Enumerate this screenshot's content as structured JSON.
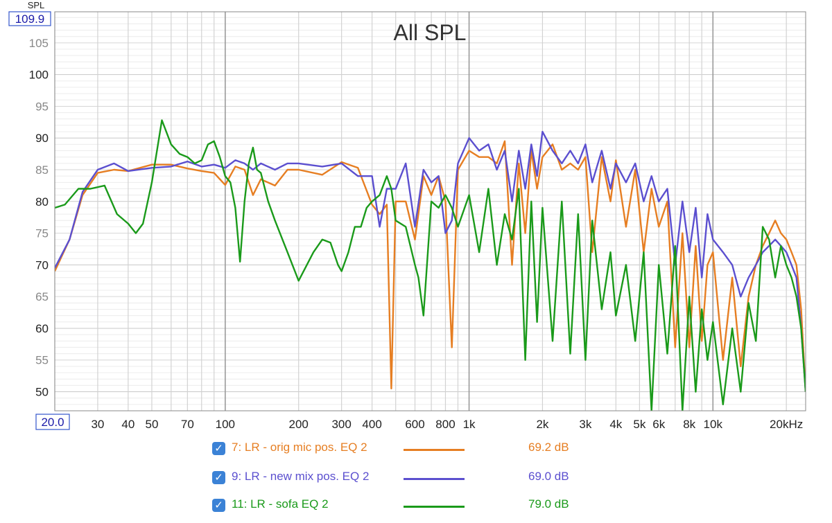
{
  "chart_data": {
    "type": "line",
    "title": "All SPL",
    "ylabel": "SPL",
    "ylim": [
      47,
      109.9
    ],
    "y_top_label": "109.9",
    "yticks": [
      {
        "v": 105,
        "label": "105",
        "major": false
      },
      {
        "v": 100,
        "label": "100",
        "major": true
      },
      {
        "v": 95,
        "label": "95",
        "major": false
      },
      {
        "v": 90,
        "label": "90",
        "major": true
      },
      {
        "v": 85,
        "label": "85",
        "major": false
      },
      {
        "v": 80,
        "label": "80",
        "major": true
      },
      {
        "v": 75,
        "label": "75",
        "major": false
      },
      {
        "v": 70,
        "label": "70",
        "major": true
      },
      {
        "v": 65,
        "label": "65",
        "major": false
      },
      {
        "v": 60,
        "label": "60",
        "major": true
      },
      {
        "v": 55,
        "label": "55",
        "major": false
      },
      {
        "v": 50,
        "label": "50",
        "major": true
      }
    ],
    "xscale": "log",
    "xlim": [
      20,
      24000
    ],
    "x_start_label": "20.0",
    "xticks": [
      {
        "v": 30,
        "label": "30"
      },
      {
        "v": 40,
        "label": "40"
      },
      {
        "v": 50,
        "label": "50"
      },
      {
        "v": 70,
        "label": "70"
      },
      {
        "v": 100,
        "label": "100"
      },
      {
        "v": 200,
        "label": "200"
      },
      {
        "v": 300,
        "label": "300"
      },
      {
        "v": 400,
        "label": "400"
      },
      {
        "v": 600,
        "label": "600"
      },
      {
        "v": 800,
        "label": "800"
      },
      {
        "v": 1000,
        "label": "1k"
      },
      {
        "v": 2000,
        "label": "2k"
      },
      {
        "v": 3000,
        "label": "3k"
      },
      {
        "v": 4000,
        "label": "4k"
      },
      {
        "v": 5000,
        "label": "5k"
      },
      {
        "v": 6000,
        "label": "6k"
      },
      {
        "v": 8000,
        "label": "8k"
      },
      {
        "v": 10000,
        "label": "10k"
      },
      {
        "v": 20000,
        "label": "20kHz"
      }
    ],
    "grid": true,
    "legend_position": "bottom",
    "series": [
      {
        "name": "7: LR - orig mic pos. EQ 2",
        "color": "#e67e22",
        "level": "69.2 dB",
        "points": [
          [
            20,
            69
          ],
          [
            23,
            74
          ],
          [
            26,
            81
          ],
          [
            30,
            84.5
          ],
          [
            35,
            85
          ],
          [
            40,
            84.8
          ],
          [
            50,
            85.8
          ],
          [
            60,
            85.8
          ],
          [
            70,
            85.2
          ],
          [
            80,
            84.8
          ],
          [
            90,
            84.5
          ],
          [
            100,
            82.6
          ],
          [
            110,
            85.5
          ],
          [
            120,
            85
          ],
          [
            130,
            81
          ],
          [
            140,
            83.5
          ],
          [
            160,
            82.5
          ],
          [
            180,
            85
          ],
          [
            200,
            85
          ],
          [
            250,
            84.2
          ],
          [
            300,
            86.2
          ],
          [
            350,
            85.3
          ],
          [
            400,
            79.5
          ],
          [
            430,
            78
          ],
          [
            460,
            79.5
          ],
          [
            480,
            50.5
          ],
          [
            500,
            80
          ],
          [
            550,
            80
          ],
          [
            600,
            74
          ],
          [
            650,
            84
          ],
          [
            700,
            81
          ],
          [
            750,
            84
          ],
          [
            800,
            80
          ],
          [
            850,
            57
          ],
          [
            900,
            85
          ],
          [
            1000,
            88
          ],
          [
            1100,
            87
          ],
          [
            1200,
            87
          ],
          [
            1300,
            86
          ],
          [
            1400,
            89.5
          ],
          [
            1500,
            70
          ],
          [
            1600,
            86
          ],
          [
            1700,
            75
          ],
          [
            1800,
            88
          ],
          [
            1900,
            82
          ],
          [
            2000,
            87
          ],
          [
            2200,
            89
          ],
          [
            2400,
            85
          ],
          [
            2600,
            86
          ],
          [
            2800,
            85
          ],
          [
            3000,
            87
          ],
          [
            3200,
            72
          ],
          [
            3500,
            87
          ],
          [
            3800,
            80
          ],
          [
            4000,
            86.5
          ],
          [
            4400,
            76
          ],
          [
            4800,
            85
          ],
          [
            5200,
            72
          ],
          [
            5600,
            82
          ],
          [
            6000,
            76
          ],
          [
            6500,
            80
          ],
          [
            7000,
            57
          ],
          [
            7500,
            75
          ],
          [
            8000,
            57
          ],
          [
            8500,
            73
          ],
          [
            9000,
            58
          ],
          [
            9500,
            70
          ],
          [
            10000,
            72
          ],
          [
            11000,
            55
          ],
          [
            12000,
            68
          ],
          [
            13000,
            54
          ],
          [
            14000,
            65
          ],
          [
            15000,
            70
          ],
          [
            16000,
            73
          ],
          [
            17000,
            75
          ],
          [
            18000,
            77
          ],
          [
            19000,
            75
          ],
          [
            20000,
            74
          ],
          [
            21000,
            72
          ],
          [
            22000,
            70
          ],
          [
            23000,
            63
          ],
          [
            24000,
            50
          ]
        ]
      },
      {
        "name": "9: LR - new mix pos. EQ 2",
        "color": "#5b4fcf",
        "level": "69.0 dB",
        "points": [
          [
            20,
            69.5
          ],
          [
            23,
            74
          ],
          [
            26,
            81.5
          ],
          [
            30,
            85
          ],
          [
            35,
            86
          ],
          [
            40,
            84.8
          ],
          [
            50,
            85.3
          ],
          [
            60,
            85.5
          ],
          [
            70,
            86.3
          ],
          [
            80,
            85.5
          ],
          [
            90,
            85.8
          ],
          [
            100,
            85.3
          ],
          [
            110,
            86.5
          ],
          [
            120,
            86
          ],
          [
            130,
            85
          ],
          [
            140,
            86
          ],
          [
            160,
            85
          ],
          [
            180,
            86
          ],
          [
            200,
            86
          ],
          [
            250,
            85.5
          ],
          [
            300,
            86
          ],
          [
            350,
            84
          ],
          [
            400,
            84
          ],
          [
            430,
            76
          ],
          [
            460,
            82
          ],
          [
            500,
            82
          ],
          [
            550,
            86
          ],
          [
            600,
            76
          ],
          [
            650,
            85
          ],
          [
            700,
            83
          ],
          [
            750,
            84
          ],
          [
            800,
            75
          ],
          [
            850,
            77
          ],
          [
            900,
            86
          ],
          [
            1000,
            90
          ],
          [
            1100,
            88
          ],
          [
            1200,
            89
          ],
          [
            1300,
            85
          ],
          [
            1400,
            88
          ],
          [
            1500,
            80
          ],
          [
            1600,
            88
          ],
          [
            1700,
            82
          ],
          [
            1800,
            89
          ],
          [
            1900,
            84
          ],
          [
            2000,
            91
          ],
          [
            2200,
            88
          ],
          [
            2400,
            86
          ],
          [
            2600,
            88
          ],
          [
            2800,
            86
          ],
          [
            3000,
            89
          ],
          [
            3200,
            83
          ],
          [
            3500,
            88
          ],
          [
            3800,
            82
          ],
          [
            4000,
            86
          ],
          [
            4400,
            83
          ],
          [
            4800,
            86
          ],
          [
            5200,
            80
          ],
          [
            5600,
            84
          ],
          [
            6000,
            80
          ],
          [
            6500,
            82
          ],
          [
            7000,
            70
          ],
          [
            7500,
            80
          ],
          [
            8000,
            72
          ],
          [
            8500,
            79
          ],
          [
            9000,
            68
          ],
          [
            9500,
            78
          ],
          [
            10000,
            74
          ],
          [
            11000,
            72
          ],
          [
            12000,
            70
          ],
          [
            13000,
            65
          ],
          [
            14000,
            68
          ],
          [
            15000,
            70
          ],
          [
            16000,
            72
          ],
          [
            17000,
            73
          ],
          [
            18000,
            74
          ],
          [
            19000,
            73
          ],
          [
            20000,
            72
          ],
          [
            21000,
            70
          ],
          [
            22000,
            68
          ],
          [
            23000,
            60
          ],
          [
            24000,
            50
          ]
        ]
      },
      {
        "name": "11: LR - sofa EQ 2",
        "color": "#1a9a1a",
        "level": "79.0 dB",
        "points": [
          [
            20,
            79
          ],
          [
            22,
            79.5
          ],
          [
            25,
            82
          ],
          [
            28,
            82
          ],
          [
            32,
            82.5
          ],
          [
            36,
            78
          ],
          [
            40,
            76.5
          ],
          [
            43,
            75
          ],
          [
            46,
            76.5
          ],
          [
            50,
            83
          ],
          [
            55,
            92.8
          ],
          [
            60,
            89
          ],
          [
            65,
            87.5
          ],
          [
            70,
            87
          ],
          [
            75,
            86
          ],
          [
            80,
            86.5
          ],
          [
            85,
            89
          ],
          [
            90,
            89.5
          ],
          [
            95,
            87
          ],
          [
            100,
            84
          ],
          [
            105,
            83
          ],
          [
            110,
            79
          ],
          [
            115,
            70.5
          ],
          [
            120,
            80
          ],
          [
            125,
            86
          ],
          [
            130,
            88.5
          ],
          [
            135,
            85
          ],
          [
            140,
            84.5
          ],
          [
            150,
            80
          ],
          [
            160,
            77
          ],
          [
            180,
            72
          ],
          [
            200,
            67.5
          ],
          [
            230,
            72
          ],
          [
            250,
            74
          ],
          [
            270,
            73.5
          ],
          [
            290,
            70
          ],
          [
            300,
            69
          ],
          [
            320,
            72
          ],
          [
            340,
            76
          ],
          [
            360,
            76
          ],
          [
            380,
            79
          ],
          [
            400,
            80
          ],
          [
            430,
            81
          ],
          [
            460,
            84
          ],
          [
            480,
            82
          ],
          [
            500,
            77
          ],
          [
            550,
            76
          ],
          [
            600,
            70
          ],
          [
            620,
            68
          ],
          [
            650,
            62
          ],
          [
            700,
            80
          ],
          [
            750,
            79
          ],
          [
            800,
            81
          ],
          [
            850,
            79
          ],
          [
            900,
            76
          ],
          [
            1000,
            81
          ],
          [
            1100,
            72
          ],
          [
            1200,
            82
          ],
          [
            1300,
            70
          ],
          [
            1400,
            78
          ],
          [
            1500,
            74
          ],
          [
            1600,
            82
          ],
          [
            1700,
            55
          ],
          [
            1800,
            80
          ],
          [
            1900,
            61
          ],
          [
            2000,
            79
          ],
          [
            2200,
            58
          ],
          [
            2400,
            80
          ],
          [
            2600,
            56
          ],
          [
            2800,
            78
          ],
          [
            3000,
            55
          ],
          [
            3200,
            77
          ],
          [
            3500,
            63
          ],
          [
            3800,
            72
          ],
          [
            4000,
            62
          ],
          [
            4400,
            70
          ],
          [
            4800,
            58
          ],
          [
            5200,
            72
          ],
          [
            5600,
            47
          ],
          [
            6000,
            70
          ],
          [
            6500,
            56
          ],
          [
            7000,
            73
          ],
          [
            7500,
            47
          ],
          [
            8000,
            65
          ],
          [
            8500,
            50
          ],
          [
            9000,
            63
          ],
          [
            9500,
            55
          ],
          [
            10000,
            61
          ],
          [
            11000,
            48
          ],
          [
            12000,
            60
          ],
          [
            13000,
            50
          ],
          [
            14000,
            64
          ],
          [
            15000,
            58
          ],
          [
            16000,
            76
          ],
          [
            17000,
            74
          ],
          [
            18000,
            68
          ],
          [
            19000,
            73
          ],
          [
            20000,
            70
          ],
          [
            21000,
            68
          ],
          [
            22000,
            65
          ],
          [
            23000,
            60
          ],
          [
            24000,
            50
          ]
        ]
      }
    ]
  }
}
